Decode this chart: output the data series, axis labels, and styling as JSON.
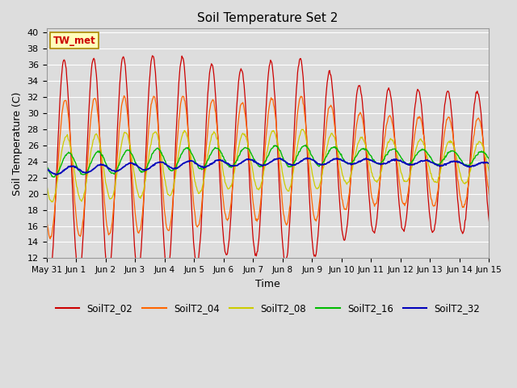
{
  "title": "Soil Temperature Set 2",
  "xlabel": "Time",
  "ylabel": "Soil Temperature (C)",
  "ylim": [
    12,
    40.5
  ],
  "yticks": [
    12,
    14,
    16,
    18,
    20,
    22,
    24,
    26,
    28,
    30,
    32,
    34,
    36,
    38,
    40
  ],
  "background_color": "#dddddd",
  "plot_bg_color": "#dddddd",
  "annotation_text": "TW_met",
  "annotation_color": "#cc0000",
  "annotation_bg": "#ffffbb",
  "line_colors": {
    "SoilT2_02": "#cc0000",
    "SoilT2_04": "#ff6600",
    "SoilT2_08": "#cccc00",
    "SoilT2_16": "#00bb00",
    "SoilT2_32": "#0000bb"
  },
  "legend_labels": [
    "SoilT2_02",
    "SoilT2_04",
    "SoilT2_08",
    "SoilT2_16",
    "SoilT2_32"
  ],
  "n_days": 15.5,
  "n_points": 744,
  "tick_labels": [
    "May 31",
    "Jun 1",
    "Jun 2",
    "Jun 3",
    "Jun 4",
    "Jun 5",
    "Jun 6",
    "Jun 7",
    "Jun 8",
    "Jun 9",
    "Jun 10",
    "Jun 11",
    "Jun 12",
    "Jun 13",
    "Jun 14",
    "Jun 15"
  ],
  "tick_positions": [
    0,
    1,
    2,
    3,
    4,
    5,
    6,
    7,
    8,
    9,
    10,
    11,
    12,
    13,
    14,
    15
  ]
}
